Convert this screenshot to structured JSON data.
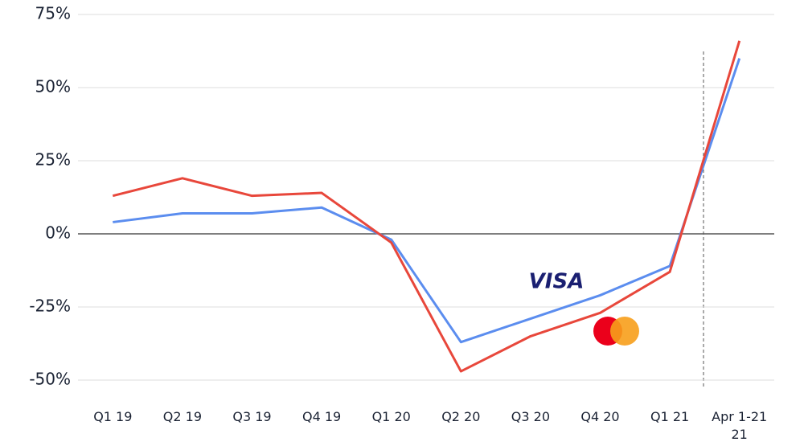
{
  "chart_data": {
    "type": "line",
    "categories": [
      "Q1 19",
      "Q2 19",
      "Q3 19",
      "Q4 19",
      "Q1 20",
      "Q2 20",
      "Q3 20",
      "Q4 20",
      "Q1 21",
      "Apr 1-21 21"
    ],
    "series": [
      {
        "name": "VISA",
        "color": "#5b8def",
        "values": [
          4,
          7,
          7,
          9,
          -2,
          -37,
          -29,
          -21,
          -11,
          60
        ]
      },
      {
        "color": "#e8473b",
        "values": [
          13,
          19,
          13,
          14,
          -3,
          -47,
          -35,
          -27,
          -13,
          66
        ]
      }
    ],
    "ylim": [
      -50,
      75
    ],
    "yticks": [
      {
        "value": -50,
        "label": "-50%"
      },
      {
        "value": -25,
        "label": "-25%"
      },
      {
        "value": 0,
        "label": "0%"
      },
      {
        "value": 25,
        "label": "25%"
      },
      {
        "value": 50,
        "label": "50%"
      },
      {
        "value": 75,
        "label": "75%"
      }
    ],
    "grid": true
  }
}
